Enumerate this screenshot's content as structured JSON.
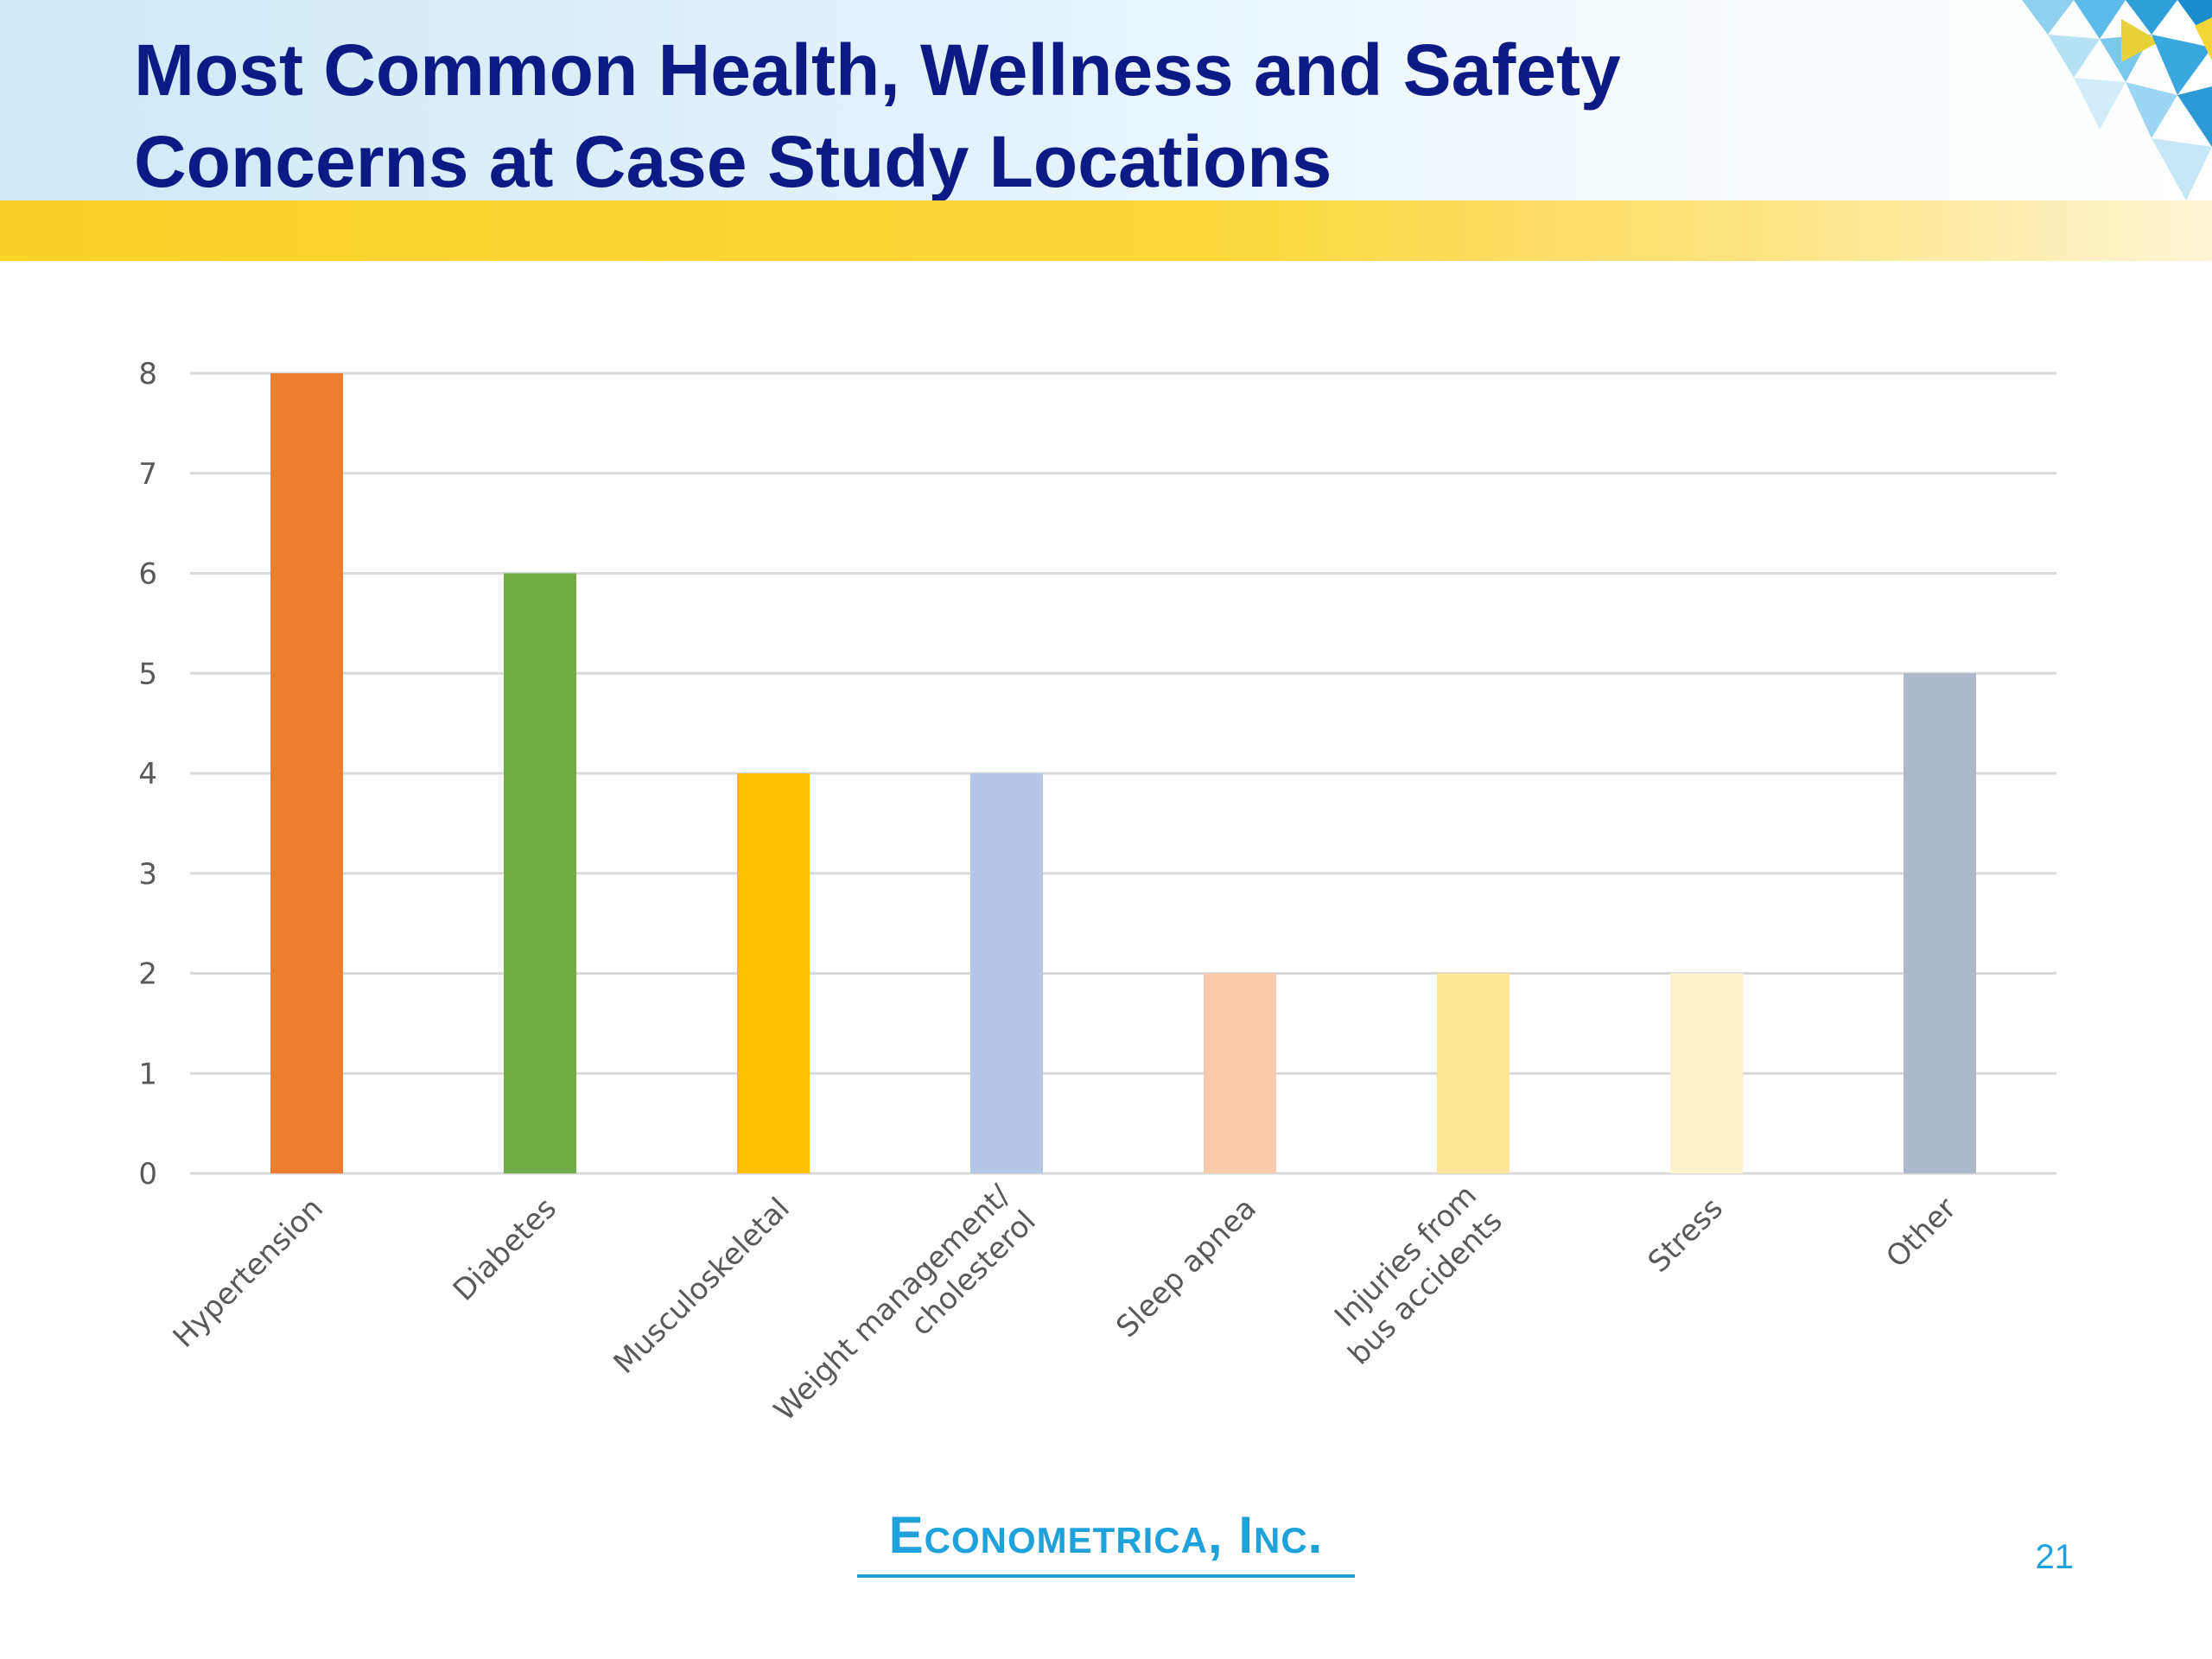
{
  "slide": {
    "title_line1": "Most Common Health, Wellness and Safety",
    "title_line2": "Concerns at Case Study Locations",
    "logo_text": "Econometrica, Inc.",
    "page_number": "21"
  },
  "colors": {
    "title": "#0c1a86",
    "accent_blue": "#1fa2dc",
    "stripe_yellow": "#f9d228",
    "gridline": "#d9d9d9",
    "tick_text": "#595959"
  },
  "chart_data": {
    "type": "bar",
    "title": "",
    "xlabel": "",
    "ylabel": "",
    "ylim": [
      0,
      8
    ],
    "yticks": [
      0,
      1,
      2,
      3,
      4,
      5,
      6,
      7,
      8
    ],
    "grid": true,
    "legend": "none",
    "categories": [
      [
        "Hypertension"
      ],
      [
        "Diabetes"
      ],
      [
        "Musculoskeletal"
      ],
      [
        "Weight management/",
        "cholesterol"
      ],
      [
        "Sleep apnea"
      ],
      [
        "Injuries from",
        "bus accidents"
      ],
      [
        "Stress"
      ],
      [
        "Other"
      ]
    ],
    "values": [
      8,
      6,
      4,
      4,
      2,
      2,
      2,
      5
    ],
    "bar_colors": [
      "#ed7d31",
      "#70ad47",
      "#ffc000",
      "#b4c7e7",
      "#f8cbad",
      "#ffe699",
      "#fff2cc",
      "#adb9ca"
    ]
  }
}
